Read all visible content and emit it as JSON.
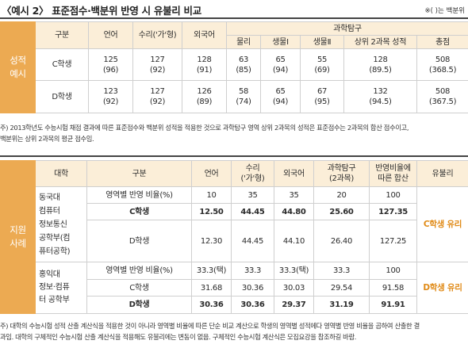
{
  "header": {
    "title": "〈예시 2〉 표준점수·백분위 반영 시 유불리 비교",
    "unit_note": "※( )는 백분위"
  },
  "table1": {
    "side_label": [
      "성적",
      "예시"
    ],
    "headers": {
      "group": "구분",
      "korean": "언어",
      "math": "수리('가'형)",
      "english": "외국어",
      "science": "과학탐구",
      "physics": "물리",
      "bio1": "생물Ⅰ",
      "bio2": "생물Ⅱ",
      "top2": "상위 2과목 성적",
      "total": "총점"
    },
    "rows": [
      {
        "name": "C학생",
        "korean": [
          "125",
          "(96)"
        ],
        "math": [
          "127",
          "(92)"
        ],
        "english": [
          "128",
          "(91)"
        ],
        "physics": [
          "63",
          "(85)"
        ],
        "bio1": [
          "65",
          "(94)"
        ],
        "bio2": [
          "55",
          "(69)"
        ],
        "top2": [
          "128",
          "(89.5)"
        ],
        "total": [
          "508",
          "(368.5)"
        ]
      },
      {
        "name": "D학생",
        "korean": [
          "123",
          "(92)"
        ],
        "math": [
          "127",
          "(92)"
        ],
        "english": [
          "126",
          "(89)"
        ],
        "physics": [
          "58",
          "(74)"
        ],
        "bio1": [
          "65",
          "(94)"
        ],
        "bio2": [
          "67",
          "(95)"
        ],
        "top2": [
          "132",
          "(94.5)"
        ],
        "total": [
          "508",
          "(367.5)"
        ]
      }
    ],
    "footnote": [
      "주) 2013학년도 수능시험 채점 결과에 따른 표준점수와 백분위 성적을 적용한 것으로 과학탐구 영역 상위 2과목의 성적은 표준점수는 2과목의 합산 점수이고,",
      "백분위는 상위 2과목의 평균 점수임."
    ]
  },
  "table2": {
    "side_label": [
      "지원",
      "사례"
    ],
    "headers": {
      "university": "대학",
      "group": "구분",
      "korean": "언어",
      "math": [
        "수리",
        "('가'형)"
      ],
      "english": "외국어",
      "science": [
        "과학탐구",
        "(2과목)"
      ],
      "sum": [
        "반영비율에",
        "따른 합산"
      ],
      "result": "유불리"
    },
    "blocks": [
      {
        "university": [
          "동국대",
          "컴퓨터",
          "정보통신",
          "공학부(컴",
          "퓨터공학)"
        ],
        "result": "C학생 유리",
        "rows": [
          {
            "name": "영역별 반영 비율(%)",
            "korean": "10",
            "math": "35",
            "english": "35",
            "science": "20",
            "sum": "100"
          },
          {
            "name": "C학생",
            "korean": "12.50",
            "math": "44.45",
            "english": "44.80",
            "science": "25.60",
            "sum": "127.35"
          },
          {
            "name": "D학생",
            "korean": "12.30",
            "math": "44.45",
            "english": "44.10",
            "science": "26.40",
            "sum": "127.25"
          }
        ]
      },
      {
        "university": [
          "홍익대",
          "정보·컴퓨",
          "터 공학부"
        ],
        "result": "D학생 유리",
        "rows": [
          {
            "name": "영역별 반영 비율(%)",
            "korean": "33.3(택)",
            "math": "33.3",
            "english": "33.3(택)",
            "science": "33.3",
            "sum": "100"
          },
          {
            "name": "C학생",
            "korean": "31.68",
            "math": "30.36",
            "english": "30.03",
            "science": "29.54",
            "sum": "91.58"
          },
          {
            "name": "D학생",
            "korean": "30.36",
            "math": "30.36",
            "english": "29.37",
            "science": "31.19",
            "sum": "91.91"
          }
        ]
      }
    ],
    "footnote": [
      "주) 대학의 수능시험 성적 산출 계산식을 적용한 것이 아니라 영역별 비율에 따른 단순 비교 계산으로 학생의 영역별 성적에다 영역별 반영 비율을 곱하여 산출한 결",
      "과임. 대학의 구체적인 수능시험 산출 계산식을 적용해도 유불리에는 변동이 없음. 구체적인 수능시험 계산식은 모집요강을 참조하길 바람."
    ]
  },
  "colors": {
    "accent_orange": "#ecaa52",
    "header_beige": "#fbeed8",
    "result_text": "#e08a16"
  }
}
